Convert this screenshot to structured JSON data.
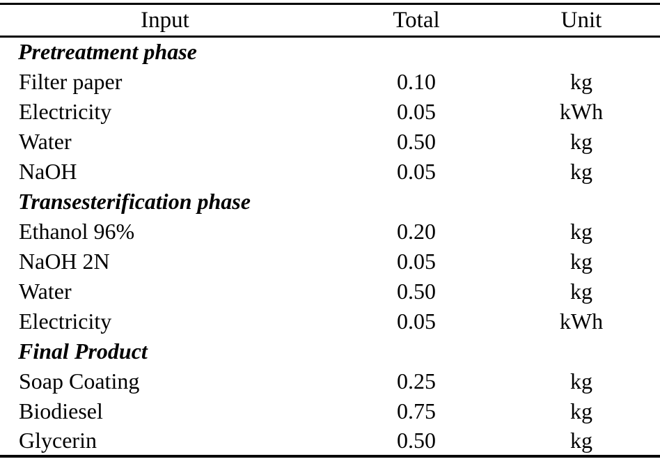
{
  "table": {
    "columns": [
      "Input",
      "Total",
      "Unit"
    ],
    "sections": [
      {
        "label": "Pretreatment phase",
        "rows": [
          [
            "Filter paper",
            "0.10",
            "kg"
          ],
          [
            "Electricity",
            "0.05",
            "kWh"
          ],
          [
            "Water",
            "0.50",
            "kg"
          ],
          [
            "NaOH",
            "0.05",
            "kg"
          ]
        ]
      },
      {
        "label": "Transesterification phase",
        "rows": [
          [
            "Ethanol 96%",
            "0.20",
            "kg"
          ],
          [
            "NaOH 2N",
            "0.05",
            "kg"
          ],
          [
            "Water",
            "0.50",
            "kg"
          ],
          [
            "Electricity",
            "0.05",
            "kWh"
          ]
        ]
      },
      {
        "label": "Final Product",
        "rows": [
          [
            "Soap Coating",
            "0.25",
            "kg"
          ],
          [
            "Biodiesel",
            "0.75",
            "kg"
          ],
          [
            "Glycerin",
            "0.50",
            "kg"
          ]
        ]
      }
    ],
    "text_color": "#000000",
    "background_color": "#ffffff",
    "rule_color": "#000000"
  }
}
